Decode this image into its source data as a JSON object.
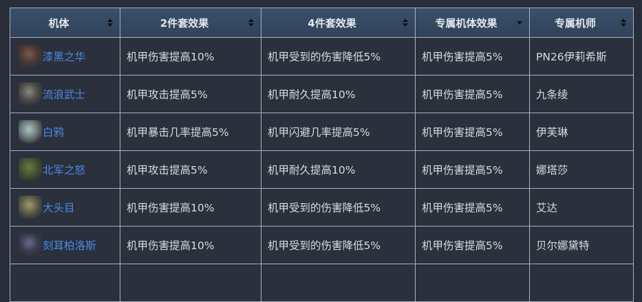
{
  "headers": [
    {
      "label": "机体",
      "sort": "both"
    },
    {
      "label": "2件套效果",
      "sort": "both"
    },
    {
      "label": "4件套效果",
      "sort": "both"
    },
    {
      "label": "专属机体效果",
      "sort": "desc"
    },
    {
      "label": "专属机师",
      "sort": "both"
    }
  ],
  "rows": [
    {
      "mech": "漆黑之华",
      "set2": "机甲伤害提高10%",
      "set4": "机甲受到的伤害降低5%",
      "exclusive": "机甲伤害提高5%",
      "pilot": "PN26伊莉希斯"
    },
    {
      "mech": "流浪武士",
      "set2": "机甲攻击提高5%",
      "set4": "机甲耐久提高10%",
      "exclusive": "机甲伤害提高5%",
      "pilot": "九条绫"
    },
    {
      "mech": "白鸦",
      "set2": "机甲暴击几率提高5%",
      "set4": "机甲闪避几率提高5%",
      "exclusive": "机甲伤害提高5%",
      "pilot": "伊芙琳"
    },
    {
      "mech": "北军之怒",
      "set2": "机甲攻击提高5%",
      "set4": "机甲耐久提高10%",
      "exclusive": "机甲伤害提高5%",
      "pilot": "娜塔莎"
    },
    {
      "mech": "大头目",
      "set2": "机甲伤害提高10%",
      "set4": "机甲受到的伤害降低5%",
      "exclusive": "机甲伤害提高5%",
      "pilot": "艾达"
    },
    {
      "mech": "刻耳柏洛斯",
      "set2": "机甲伤害提高10%",
      "set4": "机甲受到的伤害降低5%",
      "exclusive": "机甲伤害提高5%",
      "pilot": "贝尔娜黛特"
    }
  ],
  "colors": {
    "background": "#272d39",
    "header": "#34475f",
    "cell": "#2a303c",
    "link": "#4a8ae6"
  }
}
